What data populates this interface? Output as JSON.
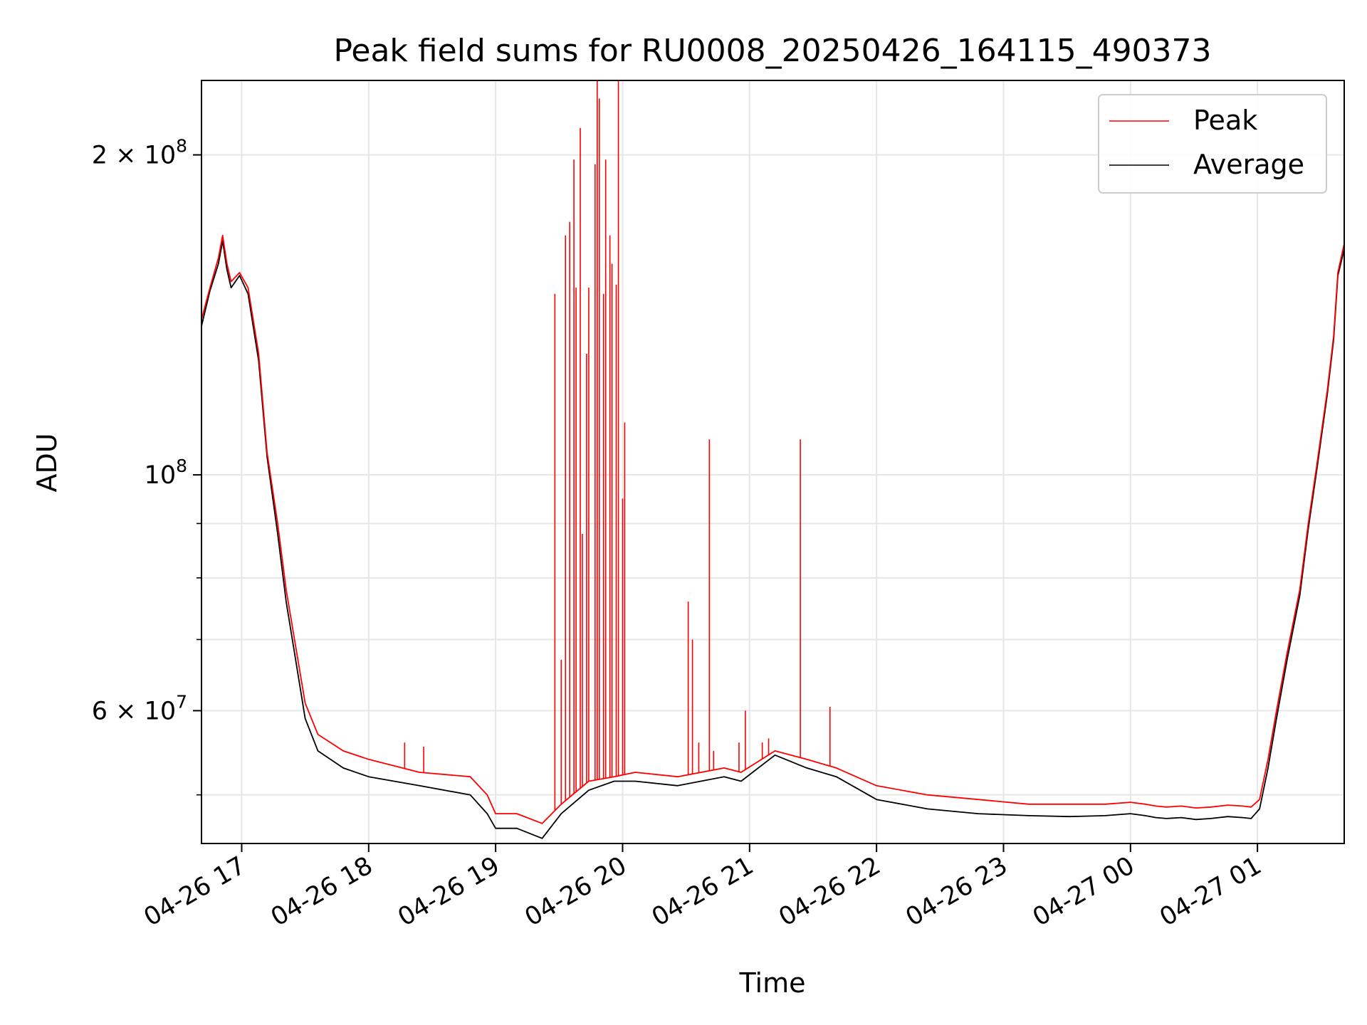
{
  "chart_data": {
    "type": "line",
    "title": "Peak field sums for RU0008_20250426_164115_490373",
    "xlabel": "Time",
    "ylabel": "ADU",
    "x_range": [
      "2025-04-26T16:41",
      "2025-04-27T01:41"
    ],
    "y_scale": "log",
    "ylim": [
      45000000,
      235000000
    ],
    "grid": true,
    "legend_position": "top-right",
    "x_tick_labels": [
      "04-26 17",
      "04-26 18",
      "04-26 19",
      "04-26 20",
      "04-26 21",
      "04-26 22",
      "04-26 23",
      "04-27 00",
      "04-27 01"
    ],
    "x_tick_values": [
      "2025-04-26T17:00",
      "2025-04-26T18:00",
      "2025-04-26T19:00",
      "2025-04-26T20:00",
      "2025-04-26T21:00",
      "2025-04-26T22:00",
      "2025-04-26T23:00",
      "2025-04-27T00:00",
      "2025-04-27T01:00"
    ],
    "y_ticks": [
      {
        "value": 200000000,
        "mantissa": "2",
        "exp": "8"
      },
      {
        "value": 100000000,
        "mantissa": "",
        "exp": "8"
      },
      {
        "value": 60000000,
        "mantissa": "6",
        "exp": "7"
      }
    ],
    "y_minor_ticks": [
      50000000,
      70000000,
      80000000,
      90000000
    ],
    "series": [
      {
        "name": "Peak",
        "color": "#ff0000",
        "x": [
          "2025-04-26T16:41",
          "2025-04-26T16:45",
          "2025-04-26T16:49",
          "2025-04-26T16:51",
          "2025-04-26T16:53",
          "2025-04-26T16:55",
          "2025-04-26T16:59",
          "2025-04-26T17:03",
          "2025-04-26T17:08",
          "2025-04-26T17:12",
          "2025-04-26T17:17",
          "2025-04-26T17:21",
          "2025-04-26T17:26",
          "2025-04-26T17:30",
          "2025-04-26T17:36",
          "2025-04-26T17:48",
          "2025-04-26T18:00",
          "2025-04-26T18:24",
          "2025-04-26T18:48",
          "2025-04-26T18:56",
          "2025-04-26T19:00",
          "2025-04-26T19:10",
          "2025-04-26T19:22",
          "2025-04-26T19:31",
          "2025-04-26T19:44",
          "2025-04-26T19:56",
          "2025-04-26T20:06",
          "2025-04-26T20:26",
          "2025-04-26T20:48",
          "2025-04-26T20:56",
          "2025-04-26T21:12",
          "2025-04-26T21:27",
          "2025-04-26T21:41",
          "2025-04-26T22:00",
          "2025-04-26T22:24",
          "2025-04-26T22:48",
          "2025-04-26T23:12",
          "2025-04-26T23:31",
          "2025-04-26T23:48",
          "2025-04-27T00:00",
          "2025-04-27T00:07",
          "2025-04-27T00:12",
          "2025-04-27T00:17",
          "2025-04-27T00:24",
          "2025-04-27T00:31",
          "2025-04-27T00:38",
          "2025-04-27T00:46",
          "2025-04-27T00:53",
          "2025-04-27T00:57",
          "2025-04-27T01:01",
          "2025-04-27T01:05",
          "2025-04-27T01:09",
          "2025-04-27T01:14",
          "2025-04-27T01:20",
          "2025-04-27T01:24",
          "2025-04-27T01:28",
          "2025-04-27T01:33",
          "2025-04-27T01:36",
          "2025-04-27T01:38",
          "2025-04-27T01:41"
        ],
        "y": [
          140000000,
          150000000,
          160000000,
          168000000,
          158000000,
          152000000,
          155000000,
          150000000,
          130000000,
          105000000,
          90000000,
          78000000,
          68000000,
          61000000,
          57000000,
          55000000,
          54000000,
          52500000,
          52000000,
          50000000,
          48000000,
          48000000,
          47000000,
          49000000,
          51500000,
          52000000,
          52500000,
          52000000,
          53000000,
          52500000,
          55000000,
          54000000,
          53000000,
          51000000,
          50000000,
          49500000,
          49000000,
          49000000,
          49000000,
          49200000,
          49000000,
          48800000,
          48700000,
          48800000,
          48600000,
          48700000,
          48900000,
          48800000,
          48700000,
          49500000,
          54000000,
          60000000,
          68000000,
          78000000,
          90000000,
          102000000,
          120000000,
          135000000,
          155000000,
          165000000
        ]
      },
      {
        "name": "Average",
        "color": "#000000",
        "x": [
          "2025-04-26T16:41",
          "2025-04-26T16:45",
          "2025-04-26T16:49",
          "2025-04-26T16:51",
          "2025-04-26T16:53",
          "2025-04-26T16:55",
          "2025-04-26T16:59",
          "2025-04-26T17:03",
          "2025-04-26T17:08",
          "2025-04-26T17:12",
          "2025-04-26T17:17",
          "2025-04-26T17:21",
          "2025-04-26T17:26",
          "2025-04-26T17:30",
          "2025-04-26T17:36",
          "2025-04-26T17:48",
          "2025-04-26T18:00",
          "2025-04-26T18:24",
          "2025-04-26T18:48",
          "2025-04-26T18:56",
          "2025-04-26T19:00",
          "2025-04-26T19:10",
          "2025-04-26T19:22",
          "2025-04-26T19:31",
          "2025-04-26T19:44",
          "2025-04-26T19:56",
          "2025-04-26T20:06",
          "2025-04-26T20:26",
          "2025-04-26T20:48",
          "2025-04-26T20:56",
          "2025-04-26T21:12",
          "2025-04-26T21:27",
          "2025-04-26T21:41",
          "2025-04-26T22:00",
          "2025-04-26T22:24",
          "2025-04-26T22:48",
          "2025-04-26T23:12",
          "2025-04-26T23:31",
          "2025-04-26T23:48",
          "2025-04-27T00:00",
          "2025-04-27T00:07",
          "2025-04-27T00:12",
          "2025-04-27T00:17",
          "2025-04-27T00:24",
          "2025-04-27T00:31",
          "2025-04-27T00:38",
          "2025-04-27T00:46",
          "2025-04-27T00:53",
          "2025-04-27T00:57",
          "2025-04-27T01:01",
          "2025-04-27T01:05",
          "2025-04-27T01:09",
          "2025-04-27T01:14",
          "2025-04-27T01:20",
          "2025-04-27T01:24",
          "2025-04-27T01:28",
          "2025-04-27T01:33",
          "2025-04-27T01:36",
          "2025-04-27T01:38",
          "2025-04-27T01:41"
        ],
        "y": [
          138000000,
          149000000,
          158000000,
          166000000,
          156000000,
          150000000,
          154000000,
          148000000,
          128000000,
          104000000,
          88000000,
          76000000,
          66000000,
          59000000,
          55000000,
          53000000,
          52000000,
          51000000,
          50000000,
          48000000,
          46500000,
          46500000,
          45500000,
          48000000,
          50500000,
          51500000,
          51500000,
          51000000,
          52000000,
          51500000,
          54500000,
          53000000,
          52000000,
          49500000,
          48500000,
          48000000,
          47800000,
          47700000,
          47800000,
          48000000,
          47800000,
          47600000,
          47500000,
          47600000,
          47400000,
          47500000,
          47700000,
          47600000,
          47500000,
          48500000,
          53000000,
          59000000,
          67000000,
          77000000,
          89000000,
          101000000,
          119000000,
          134000000,
          154000000,
          163000000
        ]
      }
    ],
    "spikes": {
      "x": [
        "2025-04-26T19:28",
        "2025-04-26T19:31",
        "2025-04-26T19:33",
        "2025-04-26T19:35",
        "2025-04-26T19:37",
        "2025-04-26T19:38",
        "2025-04-26T19:40",
        "2025-04-26T19:41",
        "2025-04-26T19:43",
        "2025-04-26T19:44",
        "2025-04-26T19:47",
        "2025-04-26T19:48",
        "2025-04-26T19:49",
        "2025-04-26T19:51",
        "2025-04-26T19:52",
        "2025-04-26T19:54",
        "2025-04-26T19:55",
        "2025-04-26T19:57",
        "2025-04-26T19:58",
        "2025-04-26T20:00",
        "2025-04-26T20:01",
        "2025-04-26T20:31",
        "2025-04-26T20:33",
        "2025-04-26T20:36",
        "2025-04-26T20:41",
        "2025-04-26T20:43",
        "2025-04-26T20:58",
        "2025-04-26T20:55",
        "2025-04-26T21:06",
        "2025-04-26T21:09",
        "2025-04-26T21:24",
        "2025-04-26T21:38",
        "2025-04-26T18:17",
        "2025-04-26T18:26"
      ],
      "y": [
        148000000,
        67000000,
        168000000,
        173000000,
        198000000,
        150000000,
        212000000,
        88000000,
        130000000,
        150000000,
        196000000,
        235000000,
        226000000,
        148000000,
        198000000,
        168000000,
        158000000,
        151000000,
        235000000,
        95000000,
        112000000,
        76000000,
        70000000,
        56000000,
        108000000,
        55000000,
        60000000,
        56000000,
        56000000,
        56500000,
        108000000,
        60500000,
        56000000,
        55500000
      ]
    }
  },
  "legend": {
    "peak_label": "Peak",
    "average_label": "Average"
  }
}
